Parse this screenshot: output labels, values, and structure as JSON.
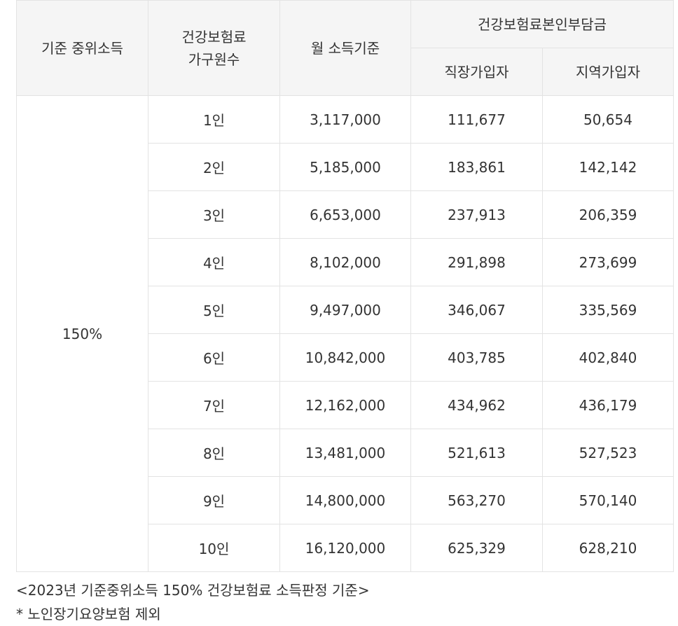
{
  "table": {
    "headers": {
      "median_income": "기준 중위소득",
      "household_size_line1": "건강보험료",
      "household_size_line2": "가구원수",
      "monthly_income": "월 소득기준",
      "premium_group": "건강보험료본인부담금",
      "employee": "직장가입자",
      "regional": "지역가입자"
    },
    "median_income_value": "150%",
    "rows": [
      {
        "size": "1인",
        "income": "3,117,000",
        "employee": "111,677",
        "regional": "50,654"
      },
      {
        "size": "2인",
        "income": "5,185,000",
        "employee": "183,861",
        "regional": "142,142"
      },
      {
        "size": "3인",
        "income": "6,653,000",
        "employee": "237,913",
        "regional": "206,359"
      },
      {
        "size": "4인",
        "income": "8,102,000",
        "employee": "291,898",
        "regional": "273,699"
      },
      {
        "size": "5인",
        "income": "9,497,000",
        "employee": "346,067",
        "regional": "335,569"
      },
      {
        "size": "6인",
        "income": "10,842,000",
        "employee": "403,785",
        "regional": "402,840"
      },
      {
        "size": "7인",
        "income": "12,162,000",
        "employee": "434,962",
        "regional": "436,179"
      },
      {
        "size": "8인",
        "income": "13,481,000",
        "employee": "521,613",
        "regional": "527,523"
      },
      {
        "size": "9인",
        "income": "14,800,000",
        "employee": "563,270",
        "regional": "570,140"
      },
      {
        "size": "10인",
        "income": "16,120,000",
        "employee": "625,329",
        "regional": "628,210"
      }
    ]
  },
  "notes": {
    "caption": "<2023년 기준중위소득 150% 건강보험료 소득판정 기준>",
    "footnote": "* 노인장기요양보험 제외"
  }
}
